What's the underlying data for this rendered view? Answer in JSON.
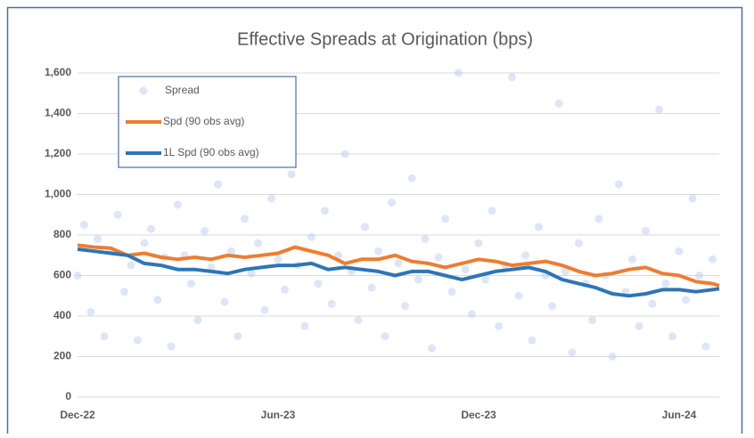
{
  "chart_data": {
    "type": "line",
    "title": "Effective Spreads at Origination (bps)",
    "xlim": [
      0,
      19.2
    ],
    "xticks": [
      {
        "value": 0,
        "label": "Dec-22"
      },
      {
        "value": 6,
        "label": "Jun-23"
      },
      {
        "value": 12,
        "label": "Dec-23"
      },
      {
        "value": 18,
        "label": "Jun-24"
      }
    ],
    "ylim": [
      0,
      1600
    ],
    "yticks": [
      0,
      200,
      400,
      600,
      800,
      {
        "value": 1000,
        "label": "1,000"
      },
      {
        "value": 1200,
        "label": "1,200"
      },
      {
        "value": 1400,
        "label": "1,400"
      },
      {
        "value": 1600,
        "label": "1,600"
      }
    ],
    "grid": true,
    "legend": "upper left",
    "series": [
      {
        "name": "Spread",
        "type": "scatter",
        "color": "#b4c7e7",
        "x": [
          0,
          0.2,
          0.4,
          0.6,
          0.8,
          1,
          1.2,
          1.4,
          1.6,
          1.8,
          2,
          2.2,
          2.4,
          2.6,
          2.8,
          3,
          3.2,
          3.4,
          3.6,
          3.8,
          4,
          4.2,
          4.4,
          4.6,
          4.8,
          5,
          5.2,
          5.4,
          5.6,
          5.8,
          6,
          6.2,
          6.4,
          6.6,
          6.8,
          7,
          7.2,
          7.4,
          7.6,
          7.8,
          8,
          8.2,
          8.4,
          8.6,
          8.8,
          9,
          9.2,
          9.4,
          9.6,
          9.8,
          10,
          10.2,
          10.4,
          10.6,
          10.8,
          11,
          11.2,
          11.4,
          11.6,
          11.8,
          12,
          12.2,
          12.4,
          12.6,
          12.8,
          13,
          13.2,
          13.4,
          13.6,
          13.8,
          14,
          14.2,
          14.4,
          14.6,
          14.8,
          15,
          15.2,
          15.4,
          15.6,
          15.8,
          16,
          16.2,
          16.4,
          16.6,
          16.8,
          17,
          17.2,
          17.4,
          17.6,
          17.8,
          18,
          18.2,
          18.4,
          18.6,
          18.8,
          19
        ],
        "values": [
          600,
          850,
          420,
          780,
          300,
          720,
          900,
          520,
          650,
          280,
          760,
          830,
          480,
          690,
          250,
          950,
          700,
          560,
          380,
          820,
          640,
          1050,
          470,
          720,
          300,
          880,
          610,
          760,
          430,
          980,
          680,
          530,
          1100,
          650,
          350,
          790,
          560,
          920,
          460,
          700,
          1200,
          620,
          380,
          840,
          540,
          720,
          300,
          960,
          660,
          450,
          1080,
          580,
          780,
          240,
          690,
          880,
          520,
          1600,
          630,
          410,
          760,
          580,
          920,
          350,
          650,
          1580,
          500,
          700,
          280,
          840,
          600,
          450,
          1450,
          620,
          220,
          760,
          560,
          380,
          880,
          600,
          200,
          1050,
          520,
          680,
          350,
          820,
          460,
          1420,
          560,
          300,
          720,
          480,
          980,
          600,
          250,
          680
        ]
      },
      {
        "name": "Spd (90 obs avg)",
        "type": "line",
        "color": "#ed7d31",
        "x": [
          0,
          0.5,
          1,
          1.5,
          2,
          2.5,
          3,
          3.5,
          4,
          4.5,
          5,
          5.5,
          6,
          6.5,
          7,
          7.5,
          8,
          8.5,
          9,
          9.5,
          10,
          10.5,
          11,
          11.5,
          12,
          12.5,
          13,
          13.5,
          14,
          14.5,
          15,
          15.5,
          16,
          16.5,
          17,
          17.5,
          18,
          18.5,
          19,
          19.2
        ],
        "values": [
          750,
          740,
          735,
          700,
          710,
          690,
          680,
          690,
          680,
          700,
          690,
          700,
          710,
          740,
          720,
          700,
          660,
          680,
          680,
          700,
          670,
          660,
          640,
          660,
          680,
          670,
          650,
          660,
          670,
          650,
          620,
          600,
          610,
          630,
          640,
          610,
          600,
          570,
          560,
          550
        ]
      },
      {
        "name": "1L Spd (90 obs avg)",
        "type": "line",
        "color": "#2e75b6",
        "x": [
          0,
          0.5,
          1,
          1.5,
          2,
          2.5,
          3,
          3.5,
          4,
          4.5,
          5,
          5.5,
          6,
          6.5,
          7,
          7.5,
          8,
          8.5,
          9,
          9.5,
          10,
          10.5,
          11,
          11.5,
          12,
          12.5,
          13,
          13.5,
          14,
          14.5,
          15,
          15.5,
          16,
          16.5,
          17,
          17.5,
          18,
          18.5,
          19,
          19.2
        ],
        "values": [
          730,
          720,
          710,
          700,
          660,
          650,
          630,
          630,
          620,
          610,
          630,
          640,
          650,
          650,
          660,
          630,
          640,
          630,
          620,
          600,
          620,
          620,
          600,
          580,
          600,
          620,
          630,
          640,
          620,
          580,
          560,
          540,
          510,
          500,
          510,
          530,
          530,
          520,
          530,
          535
        ]
      }
    ]
  }
}
